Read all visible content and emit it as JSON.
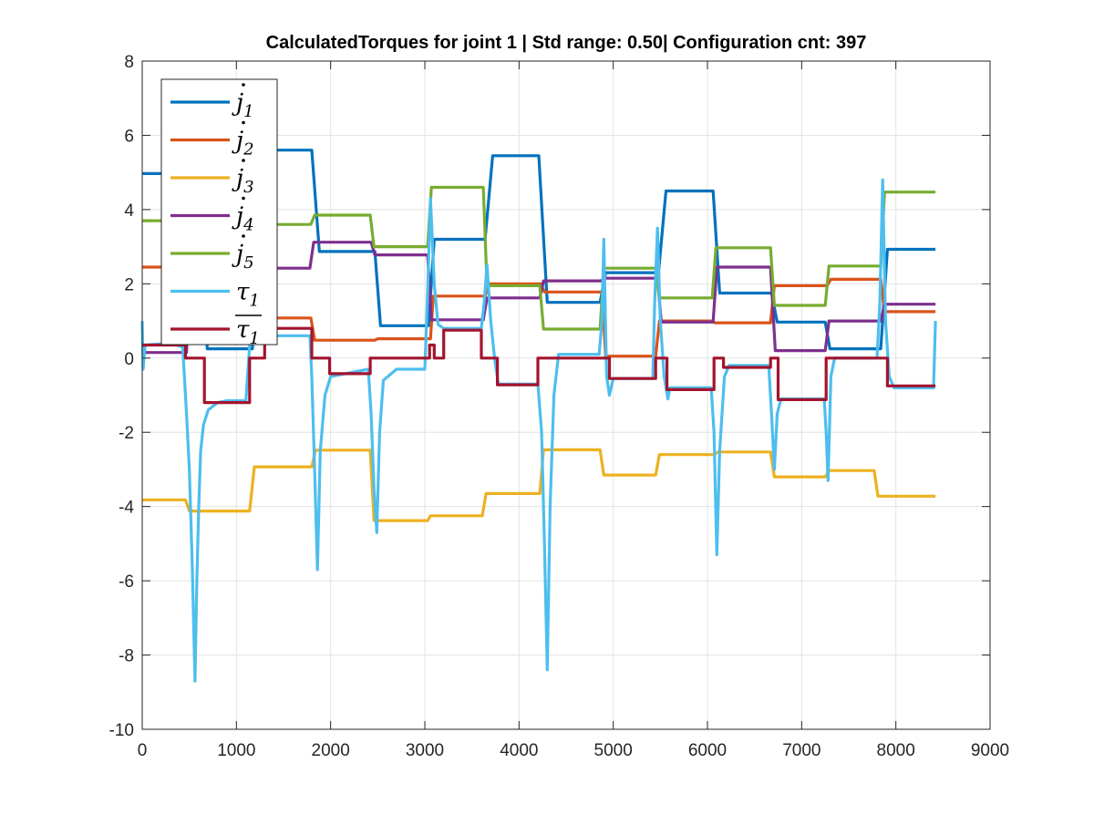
{
  "chart_data": {
    "type": "line",
    "title": "CalculatedTorques for joint 1 | Std range: 0.50| Configuration cnt: 397",
    "xlabel": "",
    "ylabel": "",
    "xlim": [
      0,
      9000
    ],
    "ylim": [
      -10,
      8
    ],
    "xticks": [
      0,
      1000,
      2000,
      3000,
      4000,
      5000,
      6000,
      7000,
      8000,
      9000
    ],
    "yticks": [
      -10,
      -8,
      -6,
      -4,
      -2,
      0,
      2,
      4,
      6,
      8
    ],
    "xtick_labels": [
      "0",
      "1000",
      "2000",
      "3000",
      "4000",
      "5000",
      "6000",
      "7000",
      "8000",
      "9000"
    ],
    "ytick_labels": [
      "-10",
      "-8",
      "-6",
      "-4",
      "-2",
      "0",
      "2",
      "4",
      "6",
      "8"
    ],
    "grid": true,
    "legend_position": "top-left",
    "series": [
      {
        "name": "j̇1",
        "legend_base": "j",
        "legend_sub": "1",
        "legend_accent": "dot",
        "color": "#0072BD",
        "points": [
          [
            0,
            4.97
          ],
          [
            620,
            4.97
          ],
          [
            690,
            0.25
          ],
          [
            1170,
            0.25
          ],
          [
            1230,
            5.6
          ],
          [
            1800,
            5.6
          ],
          [
            1880,
            2.87
          ],
          [
            2470,
            2.87
          ],
          [
            2530,
            0.87
          ],
          [
            3040,
            0.87
          ],
          [
            3100,
            3.2
          ],
          [
            3640,
            3.2
          ],
          [
            3720,
            5.45
          ],
          [
            4210,
            5.45
          ],
          [
            4300,
            1.5
          ],
          [
            4860,
            1.5
          ],
          [
            4920,
            2.3
          ],
          [
            5480,
            2.3
          ],
          [
            5560,
            4.5
          ],
          [
            6060,
            4.5
          ],
          [
            6130,
            1.75
          ],
          [
            6680,
            1.75
          ],
          [
            6740,
            0.97
          ],
          [
            7250,
            0.97
          ],
          [
            7300,
            0.25
          ],
          [
            7840,
            0.25
          ],
          [
            7910,
            2.93
          ],
          [
            8420,
            2.93
          ]
        ]
      },
      {
        "name": "j̇2",
        "legend_base": "j",
        "legend_sub": "2",
        "legend_accent": "dot",
        "color": "#D95319",
        "points": [
          [
            0,
            2.45
          ],
          [
            620,
            2.45
          ],
          [
            680,
            1.08
          ],
          [
            1790,
            1.08
          ],
          [
            1830,
            0.48
          ],
          [
            2470,
            0.48
          ],
          [
            2500,
            0.52
          ],
          [
            3060,
            0.52
          ],
          [
            3090,
            1.67
          ],
          [
            3640,
            1.67
          ],
          [
            3680,
            2.0
          ],
          [
            4230,
            2.0
          ],
          [
            4270,
            1.78
          ],
          [
            4880,
            1.78
          ],
          [
            4920,
            0.05
          ],
          [
            5450,
            0.05
          ],
          [
            5490,
            1.0
          ],
          [
            6040,
            1.0
          ],
          [
            6080,
            0.95
          ],
          [
            6670,
            0.95
          ],
          [
            6710,
            1.95
          ],
          [
            7270,
            1.95
          ],
          [
            7310,
            2.12
          ],
          [
            7840,
            2.12
          ],
          [
            7880,
            1.25
          ],
          [
            8420,
            1.25
          ]
        ]
      },
      {
        "name": "j̇3",
        "legend_base": "j",
        "legend_sub": "3",
        "legend_accent": "dot",
        "color": "#EDB120",
        "points": [
          [
            0,
            -3.82
          ],
          [
            460,
            -3.82
          ],
          [
            500,
            -4.12
          ],
          [
            1140,
            -4.12
          ],
          [
            1190,
            -2.93
          ],
          [
            1800,
            -2.93
          ],
          [
            1840,
            -2.48
          ],
          [
            2420,
            -2.48
          ],
          [
            2460,
            -4.38
          ],
          [
            3030,
            -4.38
          ],
          [
            3060,
            -4.25
          ],
          [
            3610,
            -4.25
          ],
          [
            3650,
            -3.65
          ],
          [
            4220,
            -3.65
          ],
          [
            4260,
            -2.47
          ],
          [
            4860,
            -2.47
          ],
          [
            4900,
            -3.15
          ],
          [
            5450,
            -3.15
          ],
          [
            5490,
            -2.6
          ],
          [
            6070,
            -2.6
          ],
          [
            6110,
            -2.53
          ],
          [
            6670,
            -2.53
          ],
          [
            6710,
            -3.2
          ],
          [
            7250,
            -3.2
          ],
          [
            7290,
            -3.03
          ],
          [
            7770,
            -3.03
          ],
          [
            7810,
            -3.72
          ],
          [
            8420,
            -3.72
          ]
        ]
      },
      {
        "name": "j̇4",
        "legend_base": "j",
        "legend_sub": "4",
        "legend_accent": "dot",
        "color": "#7E2F8E",
        "points": [
          [
            0,
            0.15
          ],
          [
            470,
            0.15
          ],
          [
            510,
            2.42
          ],
          [
            1780,
            2.42
          ],
          [
            1820,
            3.12
          ],
          [
            2430,
            3.12
          ],
          [
            2470,
            2.78
          ],
          [
            3030,
            2.78
          ],
          [
            3070,
            1.03
          ],
          [
            3620,
            1.03
          ],
          [
            3660,
            1.62
          ],
          [
            4220,
            1.62
          ],
          [
            4260,
            2.08
          ],
          [
            4870,
            2.08
          ],
          [
            4910,
            2.15
          ],
          [
            5470,
            2.15
          ],
          [
            5510,
            0.97
          ],
          [
            6060,
            0.97
          ],
          [
            6100,
            2.45
          ],
          [
            6670,
            2.45
          ],
          [
            6720,
            0.2
          ],
          [
            7250,
            0.2
          ],
          [
            7290,
            1.0
          ],
          [
            7840,
            1.0
          ],
          [
            7880,
            1.45
          ],
          [
            8420,
            1.45
          ]
        ]
      },
      {
        "name": "j̇5",
        "legend_base": "j",
        "legend_sub": "5",
        "legend_accent": "dot",
        "color": "#77AC30",
        "points": [
          [
            0,
            3.7
          ],
          [
            480,
            3.7
          ],
          [
            520,
            3.6
          ],
          [
            1790,
            3.6
          ],
          [
            1830,
            3.85
          ],
          [
            2420,
            3.85
          ],
          [
            2460,
            3.0
          ],
          [
            3030,
            3.0
          ],
          [
            3070,
            4.6
          ],
          [
            3620,
            4.6
          ],
          [
            3660,
            1.95
          ],
          [
            4220,
            1.95
          ],
          [
            4260,
            0.78
          ],
          [
            4860,
            0.78
          ],
          [
            4900,
            2.42
          ],
          [
            5450,
            2.42
          ],
          [
            5490,
            1.62
          ],
          [
            6050,
            1.62
          ],
          [
            6090,
            2.97
          ],
          [
            6670,
            2.97
          ],
          [
            6710,
            1.42
          ],
          [
            7250,
            1.42
          ],
          [
            7290,
            2.48
          ],
          [
            7840,
            2.48
          ],
          [
            7880,
            4.47
          ],
          [
            8420,
            4.47
          ]
        ]
      },
      {
        "name": "τ1",
        "legend_base": "τ",
        "legend_sub": "1",
        "legend_accent": "",
        "color": "#4DBEEE",
        "points": [
          [
            0,
            1.0
          ],
          [
            10,
            -0.3
          ],
          [
            30,
            0.35
          ],
          [
            300,
            0.4
          ],
          [
            430,
            0.3
          ],
          [
            470,
            -1.5
          ],
          [
            500,
            -3.0
          ],
          [
            530,
            -5.5
          ],
          [
            560,
            -8.7
          ],
          [
            580,
            -6.0
          ],
          [
            600,
            -4.0
          ],
          [
            620,
            -2.5
          ],
          [
            650,
            -1.8
          ],
          [
            700,
            -1.4
          ],
          [
            800,
            -1.2
          ],
          [
            900,
            -1.15
          ],
          [
            1100,
            -1.15
          ],
          [
            1150,
            0.7
          ],
          [
            1300,
            0.6
          ],
          [
            1780,
            0.6
          ],
          [
            1800,
            -0.5
          ],
          [
            1830,
            -3.0
          ],
          [
            1860,
            -5.7
          ],
          [
            1890,
            -2.5
          ],
          [
            1940,
            -1.0
          ],
          [
            2000,
            -0.5
          ],
          [
            2400,
            -0.3
          ],
          [
            2430,
            -1.5
          ],
          [
            2460,
            -3.5
          ],
          [
            2490,
            -4.7
          ],
          [
            2520,
            -2.0
          ],
          [
            2560,
            -0.6
          ],
          [
            2700,
            -0.3
          ],
          [
            3000,
            -0.3
          ],
          [
            3030,
            1.8
          ],
          [
            3060,
            4.3
          ],
          [
            3100,
            2.0
          ],
          [
            3140,
            0.9
          ],
          [
            3200,
            0.8
          ],
          [
            3600,
            0.8
          ],
          [
            3630,
            1.5
          ],
          [
            3660,
            2.5
          ],
          [
            3700,
            1.0
          ],
          [
            3740,
            0.0
          ],
          [
            3780,
            -0.7
          ],
          [
            4200,
            -0.7
          ],
          [
            4240,
            -2.0
          ],
          [
            4270,
            -5.0
          ],
          [
            4300,
            -8.4
          ],
          [
            4330,
            -4.0
          ],
          [
            4370,
            -1.0
          ],
          [
            4420,
            0.1
          ],
          [
            4850,
            0.1
          ],
          [
            4880,
            1.0
          ],
          [
            4900,
            3.2
          ],
          [
            4930,
            -0.5
          ],
          [
            4960,
            -1.0
          ],
          [
            5000,
            -0.55
          ],
          [
            5420,
            -0.55
          ],
          [
            5440,
            1.5
          ],
          [
            5470,
            3.5
          ],
          [
            5500,
            1.0
          ],
          [
            5540,
            -0.5
          ],
          [
            5580,
            -1.1
          ],
          [
            5600,
            -0.8
          ],
          [
            6040,
            -0.8
          ],
          [
            6070,
            -2.0
          ],
          [
            6100,
            -5.3
          ],
          [
            6130,
            -2.5
          ],
          [
            6180,
            -0.5
          ],
          [
            6230,
            -0.2
          ],
          [
            6650,
            -0.2
          ],
          [
            6680,
            -1.5
          ],
          [
            6710,
            -3.0
          ],
          [
            6740,
            -1.5
          ],
          [
            6780,
            -1.1
          ],
          [
            7240,
            -1.1
          ],
          [
            7260,
            -2.0
          ],
          [
            7280,
            -3.3
          ],
          [
            7310,
            -0.5
          ],
          [
            7350,
            0.0
          ],
          [
            7800,
            0.0
          ],
          [
            7830,
            1.5
          ],
          [
            7860,
            4.8
          ],
          [
            7890,
            1.0
          ],
          [
            7930,
            -0.5
          ],
          [
            7980,
            -0.8
          ],
          [
            8400,
            -0.8
          ],
          [
            8420,
            1.0
          ]
        ]
      },
      {
        "name": "τ̄1",
        "legend_base": "τ",
        "legend_sub": "1",
        "legend_accent": "bar",
        "color": "#A2142F",
        "points": [
          [
            0,
            0.35
          ],
          [
            460,
            0.35
          ],
          [
            460,
            0.0
          ],
          [
            660,
            0.0
          ],
          [
            660,
            -1.2
          ],
          [
            1140,
            -1.2
          ],
          [
            1140,
            0.0
          ],
          [
            1300,
            0.0
          ],
          [
            1300,
            0.8
          ],
          [
            1800,
            0.8
          ],
          [
            1800,
            0.0
          ],
          [
            1990,
            0.0
          ],
          [
            1990,
            -0.42
          ],
          [
            2420,
            -0.42
          ],
          [
            2420,
            0.0
          ],
          [
            3050,
            0.0
          ],
          [
            3050,
            0.35
          ],
          [
            3100,
            0.35
          ],
          [
            3100,
            0.0
          ],
          [
            3200,
            0.0
          ],
          [
            3200,
            0.75
          ],
          [
            3600,
            0.75
          ],
          [
            3600,
            0.0
          ],
          [
            3770,
            0.0
          ],
          [
            3770,
            -0.72
          ],
          [
            4200,
            -0.72
          ],
          [
            4200,
            0.0
          ],
          [
            4960,
            0.0
          ],
          [
            4960,
            -0.55
          ],
          [
            5450,
            -0.55
          ],
          [
            5450,
            0.0
          ],
          [
            5570,
            0.0
          ],
          [
            5570,
            -0.85
          ],
          [
            6070,
            -0.85
          ],
          [
            6070,
            0.0
          ],
          [
            6170,
            0.0
          ],
          [
            6170,
            -0.25
          ],
          [
            6670,
            -0.25
          ],
          [
            6670,
            0.0
          ],
          [
            6750,
            0.0
          ],
          [
            6750,
            -1.12
          ],
          [
            7260,
            -1.12
          ],
          [
            7260,
            0.0
          ],
          [
            7800,
            0.0
          ],
          [
            7800,
            -0.0
          ],
          [
            7910,
            -0.0
          ],
          [
            7910,
            -0.75
          ],
          [
            8420,
            -0.75
          ]
        ]
      }
    ]
  }
}
